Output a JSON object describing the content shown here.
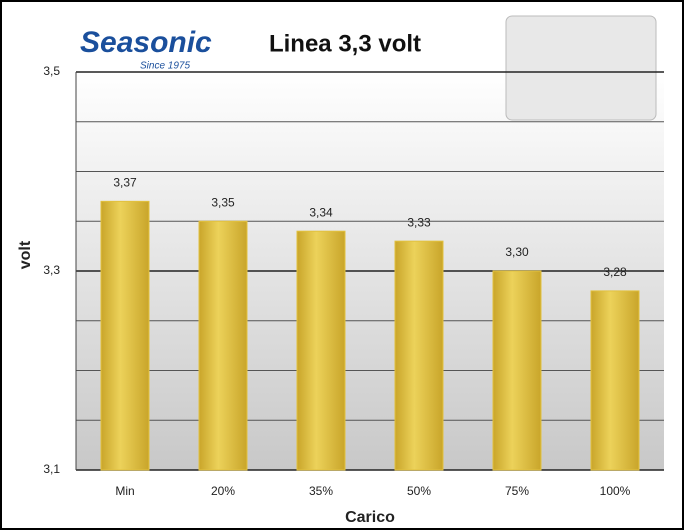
{
  "logo": {
    "brand": "Seasonic",
    "tagline": "Since 1975"
  },
  "chart_data": {
    "type": "bar",
    "title": "Linea 3,3 volt",
    "xlabel": "Carico",
    "ylabel": "volt",
    "categories": [
      "Min",
      "20%",
      "35%",
      "50%",
      "75%",
      "100%"
    ],
    "values": [
      3.37,
      3.35,
      3.34,
      3.33,
      3.3,
      3.28
    ],
    "value_labels": [
      "3,37",
      "3,35",
      "3,34",
      "3,33",
      "3,30",
      "3,28"
    ],
    "color": "#e2c13e",
    "ylim": [
      3.1,
      3.5
    ],
    "yticks": [
      {
        "value": 3.1,
        "label": "3,1"
      },
      {
        "value": 3.3,
        "label": "3,3"
      },
      {
        "value": 3.5,
        "label": "3,5"
      }
    ],
    "yminor": [
      3.15,
      3.2,
      3.25,
      3.35,
      3.4,
      3.45
    ],
    "grid": true
  }
}
